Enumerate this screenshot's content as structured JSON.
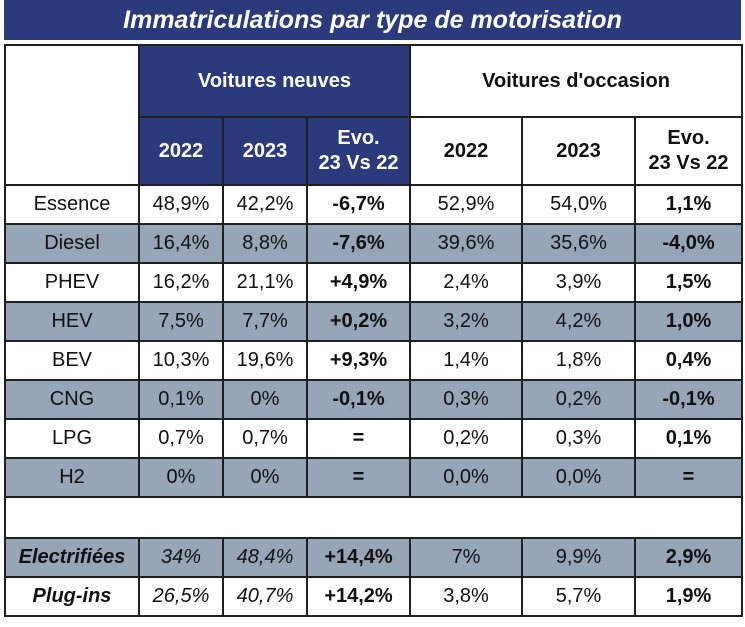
{
  "title": "Immatriculations par type de motorisation",
  "groups": {
    "new": "Voitures neuves",
    "used": "Voitures d'occasion"
  },
  "subheaders": {
    "y2022": "2022",
    "y2023": "2023",
    "evo_line1": "Evo.",
    "evo_line2": "23 Vs 22"
  },
  "colors": {
    "header_navy": "#2b3a7a",
    "row_alt_gray": "#97a5b8"
  },
  "chart_data": {
    "type": "table",
    "title": "Immatriculations par type de motorisation",
    "columns": [
      "",
      "Voitures neuves 2022",
      "Voitures neuves 2023",
      "Voitures neuves Evo. 23 Vs 22",
      "Voitures d'occasion 2022",
      "Voitures d'occasion 2023",
      "Voitures d'occasion Evo. 23 Vs 22"
    ],
    "rows": [
      {
        "label": "Essence",
        "values": [
          "48,9%",
          "42,2%",
          "-6,7%",
          "52,9%",
          "54,0%",
          "1,1%"
        ],
        "alt": false
      },
      {
        "label": "Diesel",
        "values": [
          "16,4%",
          "8,8%",
          "-7,6%",
          "39,6%",
          "35,6%",
          "-4,0%"
        ],
        "alt": true
      },
      {
        "label": "PHEV",
        "values": [
          "16,2%",
          "21,1%",
          "+4,9%",
          "2,4%",
          "3,9%",
          "1,5%"
        ],
        "alt": false
      },
      {
        "label": "HEV",
        "values": [
          "7,5%",
          "7,7%",
          "+0,2%",
          "3,2%",
          "4,2%",
          "1,0%"
        ],
        "alt": true
      },
      {
        "label": "BEV",
        "values": [
          "10,3%",
          "19,6%",
          "+9,3%",
          "1,4%",
          "1,8%",
          "0,4%"
        ],
        "alt": false
      },
      {
        "label": "CNG",
        "values": [
          "0,1%",
          "0%",
          "-0,1%",
          "0,3%",
          "0,2%",
          "-0,1%"
        ],
        "alt": true
      },
      {
        "label": "LPG",
        "values": [
          "0,7%",
          "0,7%",
          "=",
          "0,2%",
          "0,3%",
          "0,1%"
        ],
        "alt": false
      },
      {
        "label": "H2",
        "values": [
          "0%",
          "0%",
          "=",
          "0,0%",
          "0,0%",
          "="
        ],
        "alt": true
      }
    ],
    "summary_rows": [
      {
        "label": "Electrifiées",
        "values": [
          "34%",
          "48,4%",
          "+14,4%",
          "7%",
          "9,9%",
          "2,9%"
        ],
        "alt": true
      },
      {
        "label": "Plug-ins",
        "values": [
          "26,5%",
          "40,7%",
          "+14,2%",
          "3,8%",
          "5,7%",
          "1,9%"
        ],
        "alt": false
      }
    ]
  }
}
